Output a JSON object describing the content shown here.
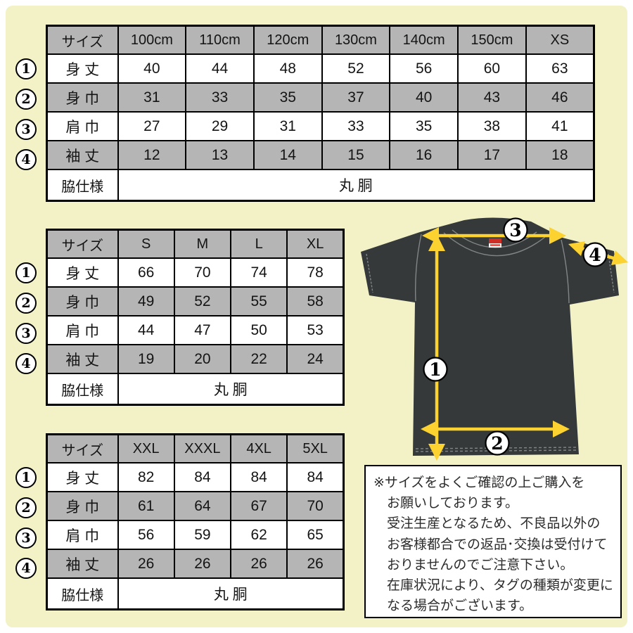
{
  "colors": {
    "background": "#f2f2c6",
    "cell_gray": "#b5b5b5",
    "arrow_yellow": "#fbd230",
    "shirt_dark": "#35393a",
    "tag_red": "#cf2e26"
  },
  "tables": [
    {
      "name": "kids",
      "headers": [
        "サイズ",
        "100cm",
        "110cm",
        "120cm",
        "130cm",
        "140cm",
        "150cm",
        "XS"
      ],
      "rows": [
        {
          "num": "1",
          "label": "身 丈",
          "values": [
            "40",
            "44",
            "48",
            "52",
            "56",
            "60",
            "63"
          ]
        },
        {
          "num": "2",
          "label": "身 巾",
          "values": [
            "31",
            "33",
            "35",
            "37",
            "40",
            "43",
            "46"
          ]
        },
        {
          "num": "3",
          "label": "肩 巾",
          "values": [
            "27",
            "29",
            "31",
            "33",
            "35",
            "38",
            "41"
          ]
        },
        {
          "num": "4",
          "label": "袖 丈",
          "values": [
            "12",
            "13",
            "14",
            "15",
            "16",
            "17",
            "18"
          ]
        }
      ],
      "footer": {
        "label": "脇仕様",
        "value": "丸 胴"
      }
    },
    {
      "name": "adult",
      "headers": [
        "サイズ",
        "S",
        "M",
        "L",
        "XL"
      ],
      "rows": [
        {
          "num": "1",
          "label": "身 丈",
          "values": [
            "66",
            "70",
            "74",
            "78"
          ]
        },
        {
          "num": "2",
          "label": "身 巾",
          "values": [
            "49",
            "52",
            "55",
            "58"
          ]
        },
        {
          "num": "3",
          "label": "肩 巾",
          "values": [
            "44",
            "47",
            "50",
            "53"
          ]
        },
        {
          "num": "4",
          "label": "袖 丈",
          "values": [
            "19",
            "20",
            "22",
            "24"
          ]
        }
      ],
      "footer": {
        "label": "脇仕様",
        "value": "丸 胴"
      }
    },
    {
      "name": "big",
      "headers": [
        "サイズ",
        "XXL",
        "XXXL",
        "4XL",
        "5XL"
      ],
      "rows": [
        {
          "num": "1",
          "label": "身 丈",
          "values": [
            "82",
            "84",
            "84",
            "84"
          ]
        },
        {
          "num": "2",
          "label": "身 巾",
          "values": [
            "61",
            "64",
            "67",
            "70"
          ]
        },
        {
          "num": "3",
          "label": "肩 巾",
          "values": [
            "56",
            "59",
            "62",
            "65"
          ]
        },
        {
          "num": "4",
          "label": "袖 丈",
          "values": [
            "26",
            "26",
            "26",
            "26"
          ]
        }
      ],
      "footer": {
        "label": "脇仕様",
        "value": "丸 胴"
      }
    }
  ],
  "shirt": {
    "labels": [
      "1",
      "2",
      "3",
      "4"
    ]
  },
  "notice": {
    "lines": [
      "※サイズをよくご確認の上ご購入を",
      "お願いしております。",
      "受注生産となるため、不良品以外の",
      "お客様都合での返品･交換は受付けて",
      "おりませんのでご注意下さい。",
      "在庫状況により、タグの種類が変更に",
      "なる場合がございます。"
    ]
  }
}
